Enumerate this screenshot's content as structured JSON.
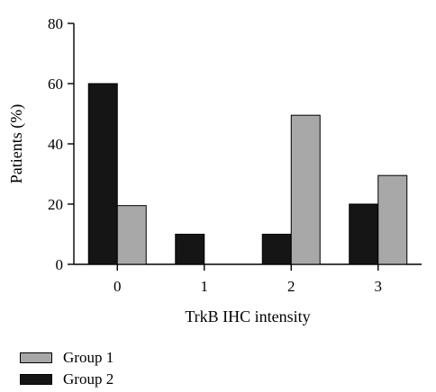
{
  "chart_data": {
    "type": "bar",
    "categories": [
      "0",
      "1",
      "2",
      "3"
    ],
    "series": [
      {
        "name": "Group 2",
        "color": "#151515",
        "values": [
          60,
          10,
          10,
          20
        ]
      },
      {
        "name": "Group 1",
        "color": "#a8a8a8",
        "values": [
          19.5,
          0,
          49.5,
          29.5
        ]
      }
    ],
    "xlabel": "TrkB IHC intensity",
    "ylabel": "Patients (%)",
    "ylim": [
      0,
      80
    ],
    "yticks": [
      "0",
      "20",
      "40",
      "60",
      "80"
    ],
    "legend_order": [
      "Group 1",
      "Group 2"
    ],
    "legend_position": "bottom-left",
    "grid": false
  }
}
